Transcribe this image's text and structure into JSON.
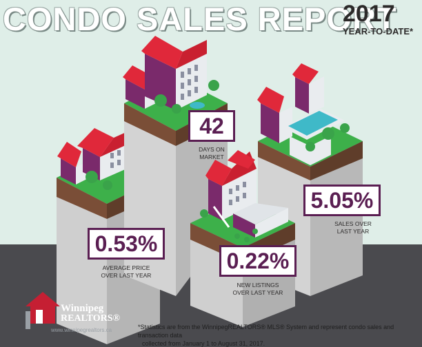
{
  "header": {
    "title": "CONDO SALES REPORT",
    "year": "2017",
    "subtitle": "YEAR-TO-DATE*"
  },
  "stats": [
    {
      "value": "42",
      "label_line1": "DAYS ON",
      "label_line2": "MARKET"
    },
    {
      "value": "0.53%",
      "label_line1": "AVERAGE PRICE",
      "label_line2": "OVER LAST YEAR"
    },
    {
      "value": "0.22%",
      "label_line1": "NEW LISTINGS",
      "label_line2": "OVER LAST YEAR"
    },
    {
      "value": "5.05%",
      "label_line1": "SALES OVER",
      "label_line2": "LAST YEAR"
    }
  ],
  "footnote": {
    "line1": "*Statistics are from the WinnipegREALTORS® MLS® System and represent condo sales and transaction data",
    "line2": "collected from January 1 to August 31, 2017."
  },
  "logo": {
    "name_line1": "Winnipeg",
    "name_line2": "REALTORS®",
    "url": "www.winnipegrealtors.ca"
  },
  "colors": {
    "purple": "#5a1e52",
    "roof_red": "#e0283a",
    "grass": "#3cab4a",
    "soil": "#6e4a35",
    "column": "#c9c9c9"
  }
}
